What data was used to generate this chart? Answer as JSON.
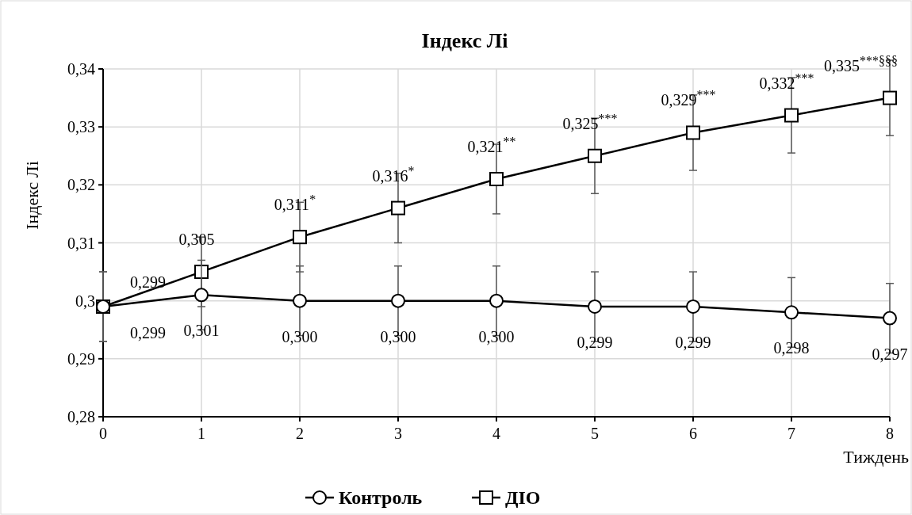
{
  "chart_data": {
    "type": "line",
    "title": "Індекс Лі",
    "ylabel": "Індекс Лі",
    "xlabel": "Тиждень",
    "x": [
      0,
      1,
      2,
      3,
      4,
      5,
      6,
      7,
      8
    ],
    "xlim": [
      0,
      8
    ],
    "xticks": [
      0,
      1,
      2,
      3,
      4,
      5,
      6,
      7,
      8
    ],
    "ylim": [
      0.28,
      0.34
    ],
    "yticks": [
      {
        "value": 0.28,
        "label": "0,28"
      },
      {
        "value": 0.29,
        "label": "0,29"
      },
      {
        "value": 0.3,
        "label": "0,3"
      },
      {
        "value": 0.31,
        "label": "0,31"
      },
      {
        "value": 0.32,
        "label": "0,32"
      },
      {
        "value": 0.33,
        "label": "0,33"
      },
      {
        "value": 0.34,
        "label": "0,34"
      }
    ],
    "grid": true,
    "legend": "bottom",
    "line_style": "solid",
    "series": [
      {
        "name": "Контроль",
        "color": "#000000",
        "marker": "circle",
        "values": [
          0.299,
          0.301,
          0.3,
          0.3,
          0.3,
          0.299,
          0.299,
          0.298,
          0.297
        ],
        "errors": [
          0.006,
          0.006,
          0.006,
          0.006,
          0.006,
          0.006,
          0.006,
          0.006,
          0.006
        ],
        "value_labels": [
          "0,299",
          "0,301",
          "0,300",
          "0,300",
          "0,300",
          "0,299",
          "0,299",
          "0,298",
          "0,297"
        ]
      },
      {
        "name": "ДІО",
        "color": "#000000",
        "marker": "square",
        "values": [
          0.299,
          0.305,
          0.311,
          0.316,
          0.321,
          0.325,
          0.329,
          0.332,
          0.335
        ],
        "errors": [
          0.006,
          0.006,
          0.006,
          0.006,
          0.006,
          0.0065,
          0.0065,
          0.0065,
          0.0065
        ],
        "value_labels": [
          "0,299",
          "0,305",
          "0,311$^{*}$",
          "0,316$^{*}$",
          "0,321$^{**}$",
          "0,325$^{***}$",
          "0,329$^{***}$",
          "0,332$^{***}$",
          "0,335$^{***§§§}$"
        ]
      }
    ]
  }
}
